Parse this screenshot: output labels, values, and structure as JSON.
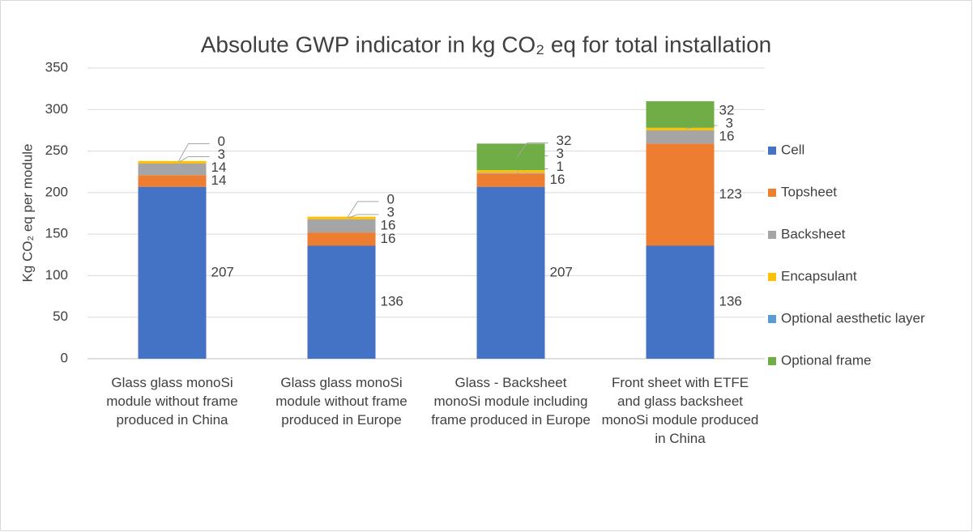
{
  "chart_data": {
    "type": "bar",
    "stacked": true,
    "title": "Absolute GWP indicator in kg CO₂ eq for total installation",
    "y_label": "Kg CO₂ eq per module",
    "categories": [
      "Glass glass monoSi module without frame produced in China",
      "Glass glass monoSi module without frame produced in Europe",
      "Glass - Backsheet monoSi module including frame produced in Europe",
      "Front sheet with ETFE and glass backsheet monoSi module produced in China"
    ],
    "series": [
      {
        "name": "Cell",
        "color": "#4472c4",
        "values": [
          207,
          136,
          207,
          136
        ]
      },
      {
        "name": "Topsheet",
        "color": "#ed7d31",
        "values": [
          14,
          16,
          16,
          123
        ]
      },
      {
        "name": "Backsheet",
        "color": "#a5a5a5",
        "values": [
          14,
          16,
          1,
          16
        ]
      },
      {
        "name": "Encapsulant",
        "color": "#ffc000",
        "values": [
          3,
          3,
          3,
          3
        ]
      },
      {
        "name": "Optional aesthetic layer",
        "color": "#5b9bd5",
        "values": [
          0,
          0,
          null,
          null
        ]
      },
      {
        "name": "Optional frame",
        "color": "#70ad47",
        "values": [
          null,
          null,
          32,
          32
        ]
      }
    ],
    "ylim": [
      0,
      350
    ],
    "yticks": [
      0,
      50,
      100,
      150,
      200,
      250,
      300,
      350
    ],
    "grid": true,
    "legend": "right"
  }
}
